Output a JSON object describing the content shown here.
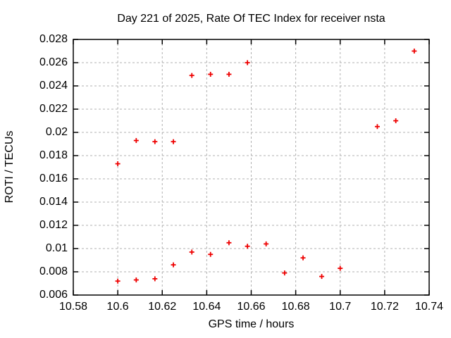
{
  "chart_data": {
    "type": "scatter",
    "title": "Day 221 of 2025, Rate Of TEC Index for receiver nsta",
    "xlabel": "GPS time / hours",
    "ylabel": "ROTI / TECUs",
    "xlim": [
      10.58,
      10.74
    ],
    "ylim": [
      0.006,
      0.028
    ],
    "xticks": [
      10.58,
      10.6,
      10.62,
      10.64,
      10.66,
      10.68,
      10.7,
      10.72,
      10.74
    ],
    "xtick_labels": [
      "10.58",
      "10.6",
      "10.62",
      "10.64",
      "10.66",
      "10.68",
      "10.7",
      "10.72",
      "10.74"
    ],
    "yticks": [
      0.006,
      0.008,
      0.01,
      0.012,
      0.014,
      0.016,
      0.018,
      0.02,
      0.022,
      0.024,
      0.026,
      0.028
    ],
    "ytick_labels": [
      "0.006",
      "0.008",
      "0.01",
      "0.012",
      "0.014",
      "0.016",
      "0.018",
      "0.02",
      "0.022",
      "0.024",
      "0.026",
      "0.028"
    ],
    "grid": true,
    "legend": "none",
    "marker": "plus",
    "marker_color": "#ee0000",
    "series": [
      {
        "name": "ROTI",
        "points": [
          [
            10.6,
            0.0072
          ],
          [
            10.6083,
            0.0073
          ],
          [
            10.6167,
            0.0074
          ],
          [
            10.625,
            0.0086
          ],
          [
            10.6333,
            0.0097
          ],
          [
            10.6417,
            0.0095
          ],
          [
            10.65,
            0.0105
          ],
          [
            10.6583,
            0.0102
          ],
          [
            10.6667,
            0.0104
          ],
          [
            10.675,
            0.0079
          ],
          [
            10.6833,
            0.0092
          ],
          [
            10.6917,
            0.0076
          ],
          [
            10.7,
            0.0083
          ],
          [
            10.6,
            0.0173
          ],
          [
            10.6083,
            0.0193
          ],
          [
            10.6167,
            0.0192
          ],
          [
            10.625,
            0.0192
          ],
          [
            10.6333,
            0.0249
          ],
          [
            10.6417,
            0.025
          ],
          [
            10.65,
            0.025
          ],
          [
            10.6583,
            0.026
          ],
          [
            10.7167,
            0.0205
          ],
          [
            10.725,
            0.021
          ],
          [
            10.7333,
            0.027
          ]
        ]
      }
    ]
  }
}
